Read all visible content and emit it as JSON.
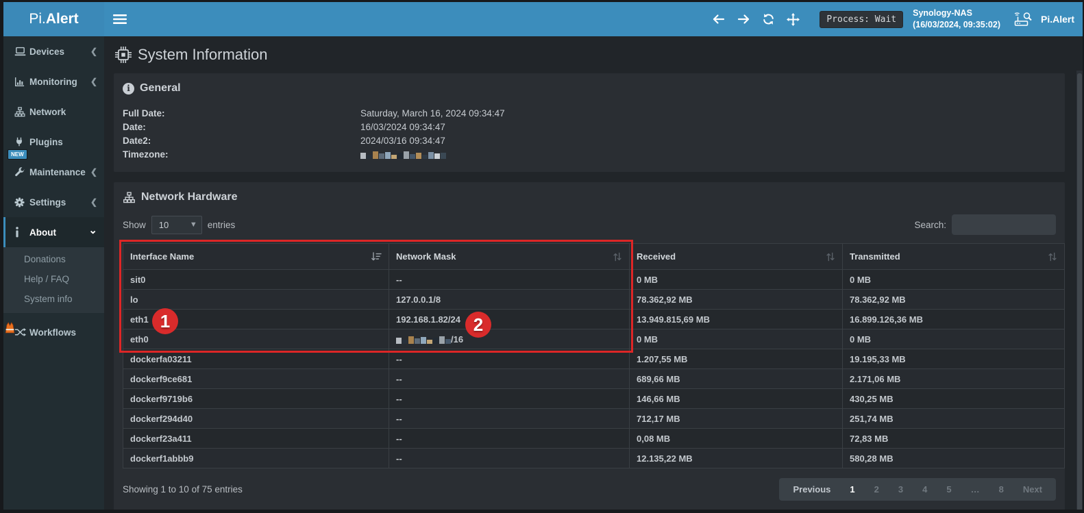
{
  "header": {
    "logo_prefix": "Pi.",
    "logo_bold": "Alert",
    "process_status": "Process: Wait",
    "device_name": "Synology-NAS",
    "device_timestamp": "(16/03/2024, 09:35:02)",
    "brand": "Pi.Alert"
  },
  "sidebar": {
    "items": [
      {
        "id": "devices",
        "label": "Devices",
        "icon": "laptop-icon",
        "chevron": "left"
      },
      {
        "id": "monitoring",
        "label": "Monitoring",
        "icon": "chart-icon",
        "chevron": "left"
      },
      {
        "id": "network",
        "label": "Network",
        "icon": "sitemap-icon",
        "chevron": ""
      },
      {
        "id": "plugins",
        "label": "Plugins",
        "icon": "plug-icon",
        "chevron": ""
      },
      {
        "id": "maintenance",
        "label": "Maintenance",
        "icon": "wrench-icon",
        "chevron": "left",
        "badge": "NEW"
      },
      {
        "id": "settings",
        "label": "Settings",
        "icon": "gear-icon",
        "chevron": "left"
      },
      {
        "id": "about",
        "label": "About",
        "icon": "info-icon",
        "chevron": "down",
        "active": true
      }
    ],
    "submenu": [
      {
        "id": "donations",
        "label": "Donations"
      },
      {
        "id": "help-faq",
        "label": "Help / FAQ"
      },
      {
        "id": "system-info",
        "label": "System info"
      }
    ],
    "workflows_label": "Workflows"
  },
  "page_title": "System Information",
  "general": {
    "title": "General",
    "rows": [
      {
        "label": "Full Date:",
        "value": "Saturday, March 16, 2024 09:34:47",
        "redacted": false
      },
      {
        "label": "Date:",
        "value": "16/03/2024 09:34:47",
        "redacted": false
      },
      {
        "label": "Date2:",
        "value": "2024/03/16 09:34:47",
        "redacted": false
      },
      {
        "label": "Timezone:",
        "value": "",
        "redacted": true
      }
    ]
  },
  "table": {
    "title": "Network Hardware",
    "show_label": "Show",
    "page_size": "10",
    "entries_label": "entries",
    "search_label": "Search:",
    "search_value": "",
    "columns": [
      {
        "label": "Interface Name",
        "sort": "desc"
      },
      {
        "label": "Network Mask",
        "sort": "both"
      },
      {
        "label": "Received",
        "sort": "both"
      },
      {
        "label": "Transmitted",
        "sort": "both"
      }
    ],
    "rows": [
      {
        "cells": [
          "sit0",
          "--",
          "0 MB",
          "0 MB"
        ]
      },
      {
        "cells": [
          "lo",
          "127.0.0.1/8",
          "78.362,92 MB",
          "78.362,92 MB"
        ]
      },
      {
        "cells": [
          "eth1",
          "192.168.1.82/24",
          "13.949.815,69 MB",
          "16.899.126,36 MB"
        ]
      },
      {
        "cells": [
          "eth0",
          "/16",
          "0 MB",
          "0 MB"
        ],
        "redacted_cell": 1
      },
      {
        "cells": [
          "dockerfa03211",
          "--",
          "1.207,55 MB",
          "19.195,33 MB"
        ]
      },
      {
        "cells": [
          "dockerf9ce681",
          "--",
          "689,66 MB",
          "2.171,06 MB"
        ]
      },
      {
        "cells": [
          "dockerf9719b6",
          "--",
          "146,66 MB",
          "430,25 MB"
        ]
      },
      {
        "cells": [
          "dockerf294d40",
          "--",
          "712,17 MB",
          "251,74 MB"
        ]
      },
      {
        "cells": [
          "dockerf23a411",
          "--",
          "0,08 MB",
          "72,83 MB"
        ]
      },
      {
        "cells": [
          "dockerf1abbb9",
          "--",
          "12.135,22 MB",
          "580,28 MB"
        ]
      }
    ],
    "showing_text": "Showing 1 to 10 of 75 entries",
    "pagination": [
      {
        "label": "Previous",
        "state": "normal"
      },
      {
        "label": "1",
        "state": "active"
      },
      {
        "label": "2",
        "state": "dim"
      },
      {
        "label": "3",
        "state": "dim"
      },
      {
        "label": "4",
        "state": "dim"
      },
      {
        "label": "5",
        "state": "dim"
      },
      {
        "label": "…",
        "state": "dim"
      },
      {
        "label": "8",
        "state": "dim"
      },
      {
        "label": "Next",
        "state": "dim"
      }
    ]
  },
  "annotations": {
    "badge_1": "1",
    "badge_2": "2"
  },
  "colors": {
    "accent_blue": "#3c8dbc",
    "annotation_red": "#dd2626",
    "sidebar_bg": "#222d32",
    "content_bg": "#212529",
    "panel_bg": "#2a2e33"
  }
}
